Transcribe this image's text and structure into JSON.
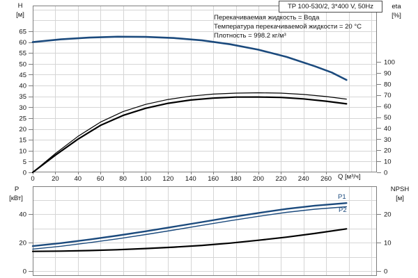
{
  "header": {
    "title_box": "TP 100-530/2, 3*400 V, 50Hz"
  },
  "annotations": [
    "Перекачиваемая жидкость = Вода",
    "Температура перекачиваемой жидкости = 20 °C",
    "Плотность = 998.2 кг/м³"
  ],
  "labels": {
    "h": "H",
    "h_unit": "[м]",
    "eta": "eta",
    "eta_unit": "[%]",
    "p": "P",
    "p_unit": "[кВт]",
    "npsh": "NPSH",
    "npsh_unit": "[м]",
    "q": "Q [м³/ч]",
    "p1": "P1",
    "p2": "P2"
  },
  "colors": {
    "curve_blue": "#1b4a7d",
    "curve_black": "#000000",
    "grid": "#d5d5d5",
    "frame": "#7d7d7d",
    "text": "#111111"
  },
  "chart_data": [
    {
      "type": "line",
      "name": "head-and-efficiency-vs-flow",
      "title": "TP 100-530/2, 3*400 V, 50Hz",
      "x_axis": {
        "label": "Q [м³/ч]",
        "range": [
          0,
          305
        ],
        "ticks": [
          0,
          20,
          40,
          60,
          80,
          100,
          120,
          140,
          160,
          180,
          200,
          220,
          240,
          260
        ]
      },
      "y_left": {
        "label": "H [м]",
        "range": [
          0,
          77
        ],
        "ticks": [
          0,
          5,
          10,
          15,
          20,
          25,
          30,
          35,
          40,
          45,
          50,
          55,
          60,
          65
        ]
      },
      "y_right": {
        "label": "eta [%]",
        "range": [
          0,
          151
        ],
        "ticks": [
          0,
          10,
          20,
          30,
          40,
          50,
          60,
          70,
          80,
          90,
          100
        ]
      },
      "grid": true,
      "series": [
        {
          "name": "H",
          "axis": "left",
          "color": "curve_blue",
          "width": 2.6,
          "points": [
            [
              0,
              60
            ],
            [
              25,
              61.3
            ],
            [
              50,
              62.1
            ],
            [
              75,
              62.5
            ],
            [
              100,
              62.4
            ],
            [
              125,
              61.9
            ],
            [
              150,
              60.8
            ],
            [
              175,
              59.0
            ],
            [
              200,
              56.5
            ],
            [
              225,
              53.2
            ],
            [
              250,
              48.9
            ],
            [
              265,
              46.0
            ],
            [
              278,
              42.6
            ]
          ]
        },
        {
          "name": "eta-pump",
          "axis": "right",
          "color": "curve_black",
          "width": 1.2,
          "points": [
            [
              0,
              0
            ],
            [
              20,
              17
            ],
            [
              40,
              32.5
            ],
            [
              60,
              45.5
            ],
            [
              80,
              55
            ],
            [
              100,
              61.5
            ],
            [
              120,
              66
            ],
            [
              140,
              69
            ],
            [
              160,
              70.8
            ],
            [
              180,
              71.7
            ],
            [
              200,
              72
            ],
            [
              220,
              71.7
            ],
            [
              240,
              70.5
            ],
            [
              260,
              68.6
            ],
            [
              278,
              66.3
            ]
          ]
        },
        {
          "name": "eta-pump-and-motor",
          "axis": "right",
          "color": "curve_black",
          "width": 2.2,
          "points": [
            [
              0,
              0
            ],
            [
              20,
              15.5
            ],
            [
              40,
              30
            ],
            [
              60,
              42.5
            ],
            [
              80,
              51.5
            ],
            [
              100,
              58
            ],
            [
              120,
              62.5
            ],
            [
              140,
              65.5
            ],
            [
              160,
              67.2
            ],
            [
              180,
              68.1
            ],
            [
              200,
              68.2
            ],
            [
              220,
              67.8
            ],
            [
              240,
              66.5
            ],
            [
              260,
              64.4
            ],
            [
              278,
              62.0
            ]
          ]
        }
      ]
    },
    {
      "type": "line",
      "name": "power-and-npsh-vs-flow",
      "x_axis": {
        "label": "Q [м³/ч]",
        "range": [
          0,
          305
        ],
        "ticks": []
      },
      "y_left": {
        "label": "P [кВт]",
        "range": [
          0,
          59
        ],
        "ticks": [
          0,
          20,
          40
        ]
      },
      "y_right": {
        "label": "NPSH [м]",
        "range": [
          0,
          29.5
        ],
        "ticks": [
          0,
          10,
          20
        ]
      },
      "grid": true,
      "series": [
        {
          "name": "P1",
          "axis": "left",
          "color": "curve_blue",
          "width": 2.4,
          "points": [
            [
              0,
              17.5
            ],
            [
              25,
              19.6
            ],
            [
              50,
              22.1
            ],
            [
              75,
              24.9
            ],
            [
              100,
              27.9
            ],
            [
              125,
              31.1
            ],
            [
              150,
              34.4
            ],
            [
              175,
              37.7
            ],
            [
              200,
              40.8
            ],
            [
              225,
              43.6
            ],
            [
              250,
              45.9
            ],
            [
              278,
              47.7
            ]
          ]
        },
        {
          "name": "P2",
          "axis": "left",
          "color": "curve_blue",
          "width": 1.4,
          "points": [
            [
              0,
              15.4
            ],
            [
              25,
              17.4
            ],
            [
              50,
              19.9
            ],
            [
              75,
              22.6
            ],
            [
              100,
              25.6
            ],
            [
              125,
              28.8
            ],
            [
              150,
              32.1
            ],
            [
              175,
              35.3
            ],
            [
              200,
              38.4
            ],
            [
              225,
              41.2
            ],
            [
              250,
              43.4
            ],
            [
              278,
              45.1
            ]
          ]
        },
        {
          "name": "NPSH",
          "axis": "right",
          "color": "curve_black",
          "width": 2.2,
          "points": [
            [
              0,
              6.9
            ],
            [
              25,
              7.0
            ],
            [
              50,
              7.2
            ],
            [
              75,
              7.5
            ],
            [
              100,
              7.9
            ],
            [
              125,
              8.4
            ],
            [
              150,
              9.0
            ],
            [
              175,
              9.8
            ],
            [
              200,
              10.8
            ],
            [
              225,
              11.9
            ],
            [
              250,
              13.2
            ],
            [
              278,
              14.8
            ]
          ]
        }
      ]
    }
  ]
}
